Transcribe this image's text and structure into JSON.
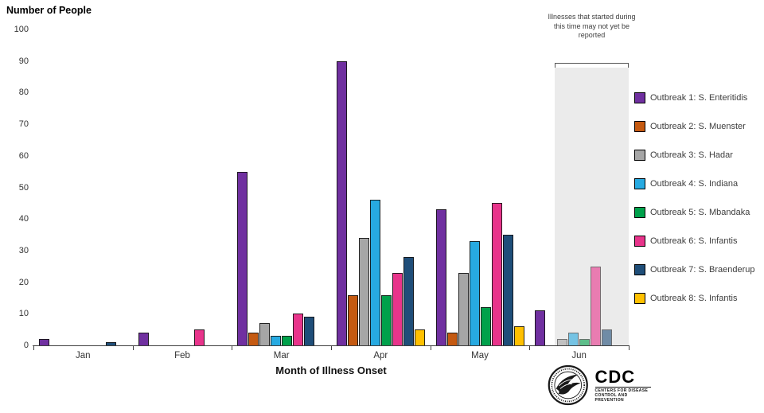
{
  "chart_data": {
    "type": "bar",
    "title": "Number of People",
    "xlabel": "Month of Illness Onset",
    "ylabel": "Number of People",
    "ylim": [
      0,
      100
    ],
    "yticks": [
      0,
      10,
      20,
      30,
      40,
      50,
      60,
      70,
      80,
      90,
      100
    ],
    "categories": [
      "Jan",
      "Feb",
      "Mar",
      "Apr",
      "May",
      "Jun"
    ],
    "grid": false,
    "legend_position": "right",
    "series": [
      {
        "name": "Outbreak 1: S. Enteritidis",
        "color": "#7030A0",
        "values": [
          2,
          4,
          55,
          90,
          43,
          11
        ]
      },
      {
        "name": "Outbreak 2: S. Muenster",
        "color": "#C55A11",
        "values": [
          0,
          0,
          4,
          16,
          4,
          0
        ]
      },
      {
        "name": "Outbreak 3: S. Hadar",
        "color": "#A6A6A6",
        "values": [
          0,
          0,
          7,
          34,
          23,
          2
        ]
      },
      {
        "name": "Outbreak 4: S. Indiana",
        "color": "#27AAE1",
        "values": [
          0,
          0,
          3,
          46,
          33,
          4
        ]
      },
      {
        "name": "Outbreak 5: S. Mbandaka",
        "color": "#00A14B",
        "values": [
          0,
          0,
          3,
          16,
          12,
          2
        ]
      },
      {
        "name": "Outbreak 6: S. Infantis",
        "color": "#E8348B",
        "values": [
          0,
          5,
          10,
          23,
          45,
          25
        ]
      },
      {
        "name": "Outbreak 7: S. Braenderup",
        "color": "#1F4E79",
        "values": [
          1,
          0,
          9,
          28,
          35,
          5
        ]
      },
      {
        "name": "Outbreak 8: S. Infantis",
        "color": "#FFC000",
        "values": [
          0,
          0,
          0,
          5,
          6,
          0
        ]
      }
    ],
    "faded_category": "Jun",
    "annotation": "Illnesses that started during this time may not yet be reported"
  },
  "footer": {
    "cdc_text": "CDC",
    "cdc_subtext_line1": "Centers for Disease",
    "cdc_subtext_line2": "Control and Prevention"
  }
}
